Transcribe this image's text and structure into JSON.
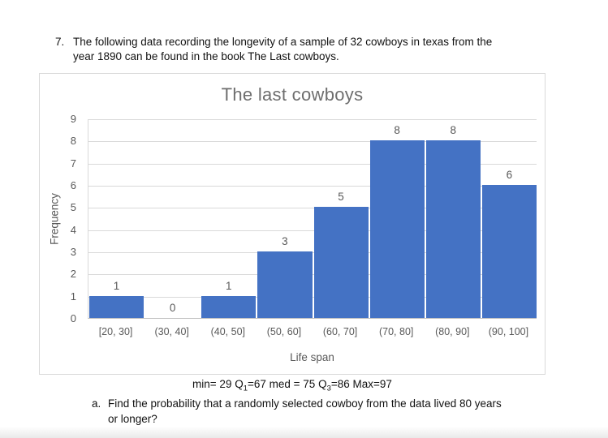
{
  "question": {
    "number": "7.",
    "line1": "The following data recording the longevity of a sample of 32 cowboys in texas from the",
    "line2": "year 1890 can be found in the book The Last cowboys."
  },
  "chart_data": {
    "type": "bar",
    "subtype": "histogram",
    "title": "The last cowboys",
    "categories": [
      "[20, 30]",
      "(30, 40]",
      "(40, 50]",
      "(50, 60]",
      "(60, 70]",
      "(70, 80]",
      "(80, 90]",
      "(90, 100]"
    ],
    "values": [
      1,
      0,
      1,
      3,
      5,
      8,
      8,
      6
    ],
    "xlabel": "Life span",
    "ylabel": "Frequency",
    "ylim": [
      0,
      9
    ],
    "yticks": [
      0,
      1,
      2,
      3,
      4,
      5,
      6,
      7,
      8,
      9
    ],
    "grid": true,
    "legend": false,
    "data_labels": true,
    "bar_color": "#4472C4",
    "text_color": "#595959",
    "gridline_color": "#d9d9d9",
    "axis_line_color": "#bfbfbf",
    "title_color": "#6e6e6e"
  },
  "stats": {
    "prefix": "min= 29 Q",
    "sub1": "1",
    "mid": "=67 med = 75 Q",
    "sub3": "3",
    "suffix": "=86 Max=97"
  },
  "part_a": {
    "label": "a.",
    "line1": "Find the probability that a randomly selected cowboy from the data lived 80 years",
    "line2": "or longer?"
  }
}
